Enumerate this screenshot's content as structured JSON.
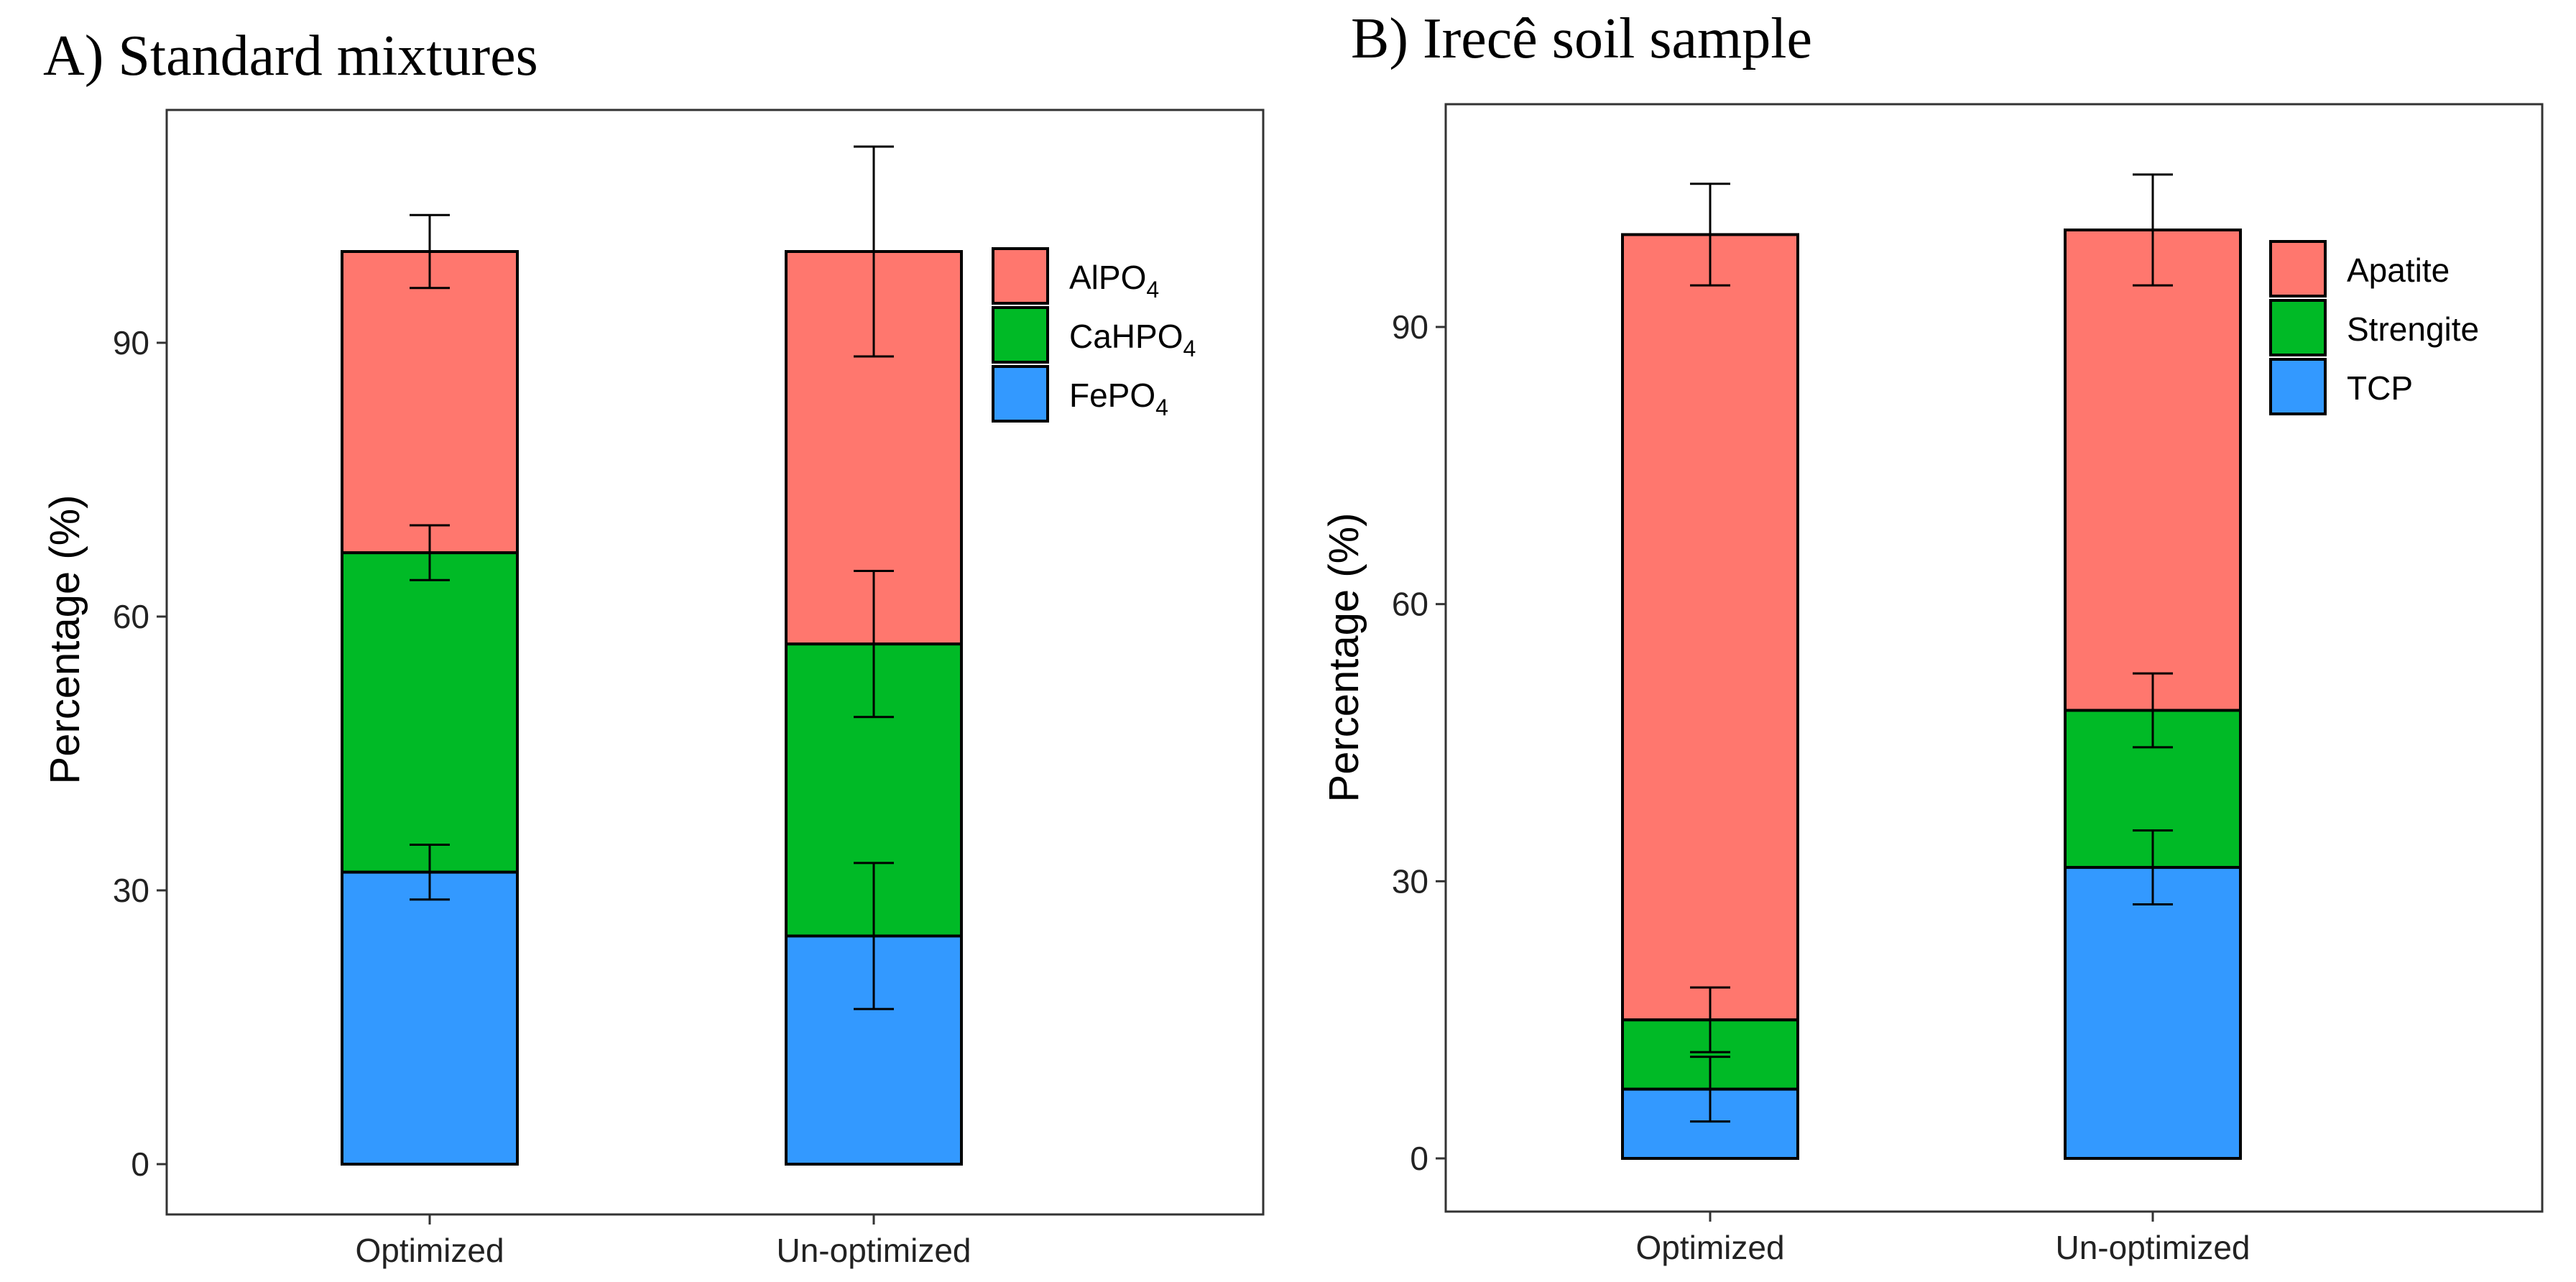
{
  "chart_data": [
    {
      "panel_label": "A)",
      "type": "bar",
      "stacked": true,
      "title": "Standard mixtures",
      "xlabel": "",
      "ylabel": "Percentage (%)",
      "ylim": [
        -5,
        120
      ],
      "yticks": [
        0,
        30,
        60,
        90
      ],
      "ytick_labels": [
        "0",
        "30",
        "60",
        "90"
      ],
      "categories": [
        "Optimized",
        "Un-optimized"
      ],
      "series": [
        {
          "name": "FePO4",
          "legend_main": "FePO",
          "legend_sub": "4",
          "color": "#3399FF",
          "values": [
            32,
            25
          ],
          "errors": [
            3,
            8
          ]
        },
        {
          "name": "CaHPO4",
          "legend_main": "CaHPO",
          "legend_sub": "4",
          "color": "#00BA26",
          "values": [
            35,
            32
          ],
          "errors": [
            3,
            8
          ]
        },
        {
          "name": "AlPO4",
          "legend_main": "AlPO",
          "legend_sub": "4",
          "color": "#FF776E",
          "values": [
            33,
            43
          ],
          "errors": [
            4,
            11.5
          ]
        }
      ],
      "legend_order": [
        "AlPO4",
        "CaHPO4",
        "FePO4"
      ],
      "legend_position": "top-right"
    },
    {
      "panel_label": "B)",
      "type": "bar",
      "stacked": true,
      "title": "Irecê soil sample",
      "xlabel": "",
      "ylabel": "Percentage (%)",
      "ylim": [
        -5,
        114
      ],
      "yticks": [
        0,
        30,
        60,
        90
      ],
      "ytick_labels": [
        "0",
        "30",
        "60",
        "90"
      ],
      "categories": [
        "Optimized",
        "Un-optimized"
      ],
      "series": [
        {
          "name": "TCP",
          "legend_main": "TCP",
          "legend_sub": "",
          "color": "#3399FF",
          "values": [
            7.5,
            31.5
          ],
          "errors": [
            3.5,
            4
          ]
        },
        {
          "name": "Strengite",
          "legend_main": "Strengite",
          "legend_sub": "",
          "color": "#00BA26",
          "values": [
            7.5,
            17
          ],
          "errors": [
            3.5,
            4
          ]
        },
        {
          "name": "Apatite",
          "legend_main": "Apatite",
          "legend_sub": "",
          "color": "#FF776E",
          "values": [
            85,
            52
          ],
          "errors": [
            5.5,
            6
          ]
        }
      ],
      "legend_order": [
        "Apatite",
        "Strengite",
        "TCP"
      ],
      "legend_position": "top-right"
    }
  ]
}
